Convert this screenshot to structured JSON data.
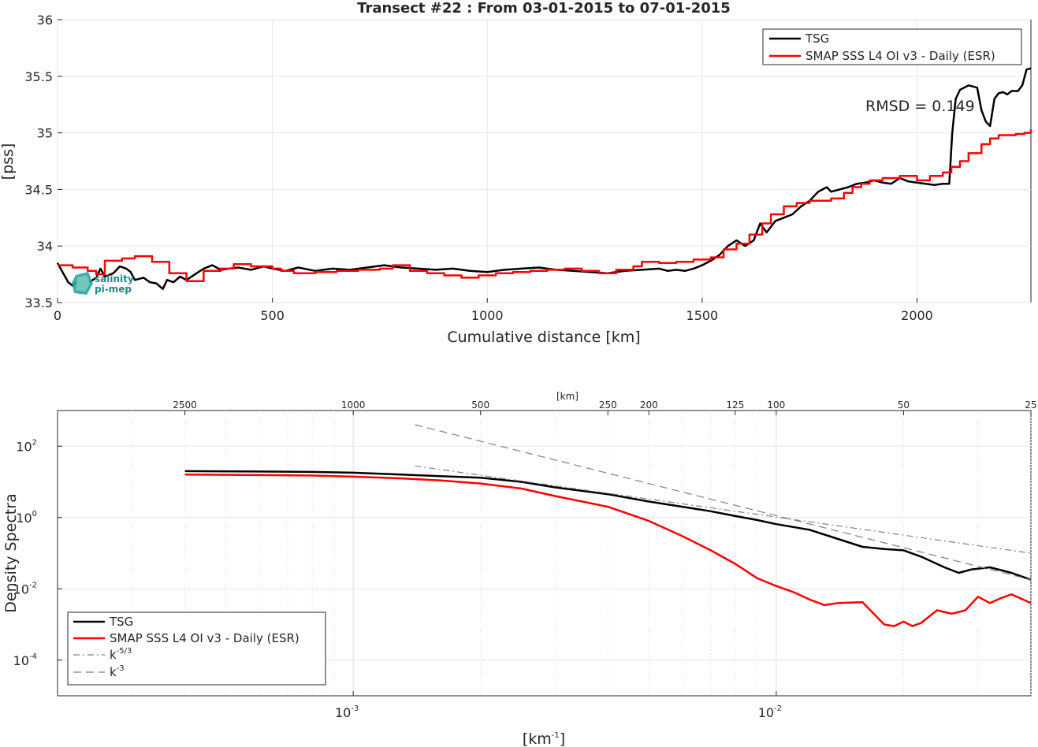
{
  "title": "Transect #22 : From 03-01-2015 to 07-01-2015",
  "logo_text": [
    "salinity",
    "pi-mep"
  ],
  "chart_data": [
    {
      "type": "line",
      "xlabel": "Cumulative distance [km]",
      "ylabel": "[pss]",
      "xlim": [
        0,
        2265
      ],
      "ylim": [
        33.5,
        36
      ],
      "xticks": [
        0,
        500,
        1000,
        1500,
        2000
      ],
      "yticks": [
        33.5,
        34,
        34.5,
        35,
        35.5,
        36
      ],
      "grid": true,
      "legend_position": "top-right",
      "annotation": "RMSD = 0.149",
      "series": [
        {
          "name": "TSG",
          "color": "#000000",
          "step": false,
          "points": [
            [
              0,
              33.85
            ],
            [
              10,
              33.78
            ],
            [
              25,
              33.68
            ],
            [
              35,
              33.65
            ],
            [
              50,
              33.7
            ],
            [
              70,
              33.67
            ],
            [
              90,
              33.72
            ],
            [
              100,
              33.8
            ],
            [
              110,
              33.73
            ],
            [
              130,
              33.76
            ],
            [
              145,
              33.82
            ],
            [
              160,
              33.8
            ],
            [
              170,
              33.77
            ],
            [
              180,
              33.7
            ],
            [
              200,
              33.72
            ],
            [
              215,
              33.68
            ],
            [
              230,
              33.67
            ],
            [
              245,
              33.62
            ],
            [
              255,
              33.7
            ],
            [
              270,
              33.68
            ],
            [
              285,
              33.73
            ],
            [
              300,
              33.7
            ],
            [
              320,
              33.75
            ],
            [
              340,
              33.8
            ],
            [
              360,
              33.83
            ],
            [
              380,
              33.79
            ],
            [
              400,
              33.8
            ],
            [
              420,
              33.81
            ],
            [
              450,
              33.79
            ],
            [
              480,
              33.82
            ],
            [
              500,
              33.8
            ],
            [
              530,
              33.78
            ],
            [
              560,
              33.81
            ],
            [
              600,
              33.78
            ],
            [
              640,
              33.8
            ],
            [
              680,
              33.79
            ],
            [
              720,
              33.81
            ],
            [
              760,
              33.83
            ],
            [
              800,
              33.81
            ],
            [
              840,
              33.8
            ],
            [
              880,
              33.79
            ],
            [
              920,
              33.8
            ],
            [
              960,
              33.78
            ],
            [
              1000,
              33.77
            ],
            [
              1040,
              33.79
            ],
            [
              1080,
              33.8
            ],
            [
              1120,
              33.81
            ],
            [
              1160,
              33.79
            ],
            [
              1200,
              33.78
            ],
            [
              1240,
              33.77
            ],
            [
              1280,
              33.76
            ],
            [
              1320,
              33.78
            ],
            [
              1360,
              33.79
            ],
            [
              1400,
              33.8
            ],
            [
              1420,
              33.78
            ],
            [
              1440,
              33.79
            ],
            [
              1460,
              33.78
            ],
            [
              1480,
              33.8
            ],
            [
              1500,
              33.83
            ],
            [
              1520,
              33.87
            ],
            [
              1540,
              33.92
            ],
            [
              1560,
              34.0
            ],
            [
              1580,
              34.05
            ],
            [
              1600,
              34.0
            ],
            [
              1620,
              34.05
            ],
            [
              1635,
              34.2
            ],
            [
              1650,
              34.12
            ],
            [
              1670,
              34.22
            ],
            [
              1690,
              34.25
            ],
            [
              1710,
              34.28
            ],
            [
              1730,
              34.35
            ],
            [
              1750,
              34.4
            ],
            [
              1770,
              34.48
            ],
            [
              1790,
              34.52
            ],
            [
              1800,
              34.48
            ],
            [
              1820,
              34.5
            ],
            [
              1840,
              34.52
            ],
            [
              1860,
              34.55
            ],
            [
              1880,
              34.56
            ],
            [
              1900,
              34.58
            ],
            [
              1920,
              34.56
            ],
            [
              1940,
              34.55
            ],
            [
              1960,
              34.6
            ],
            [
              1980,
              34.57
            ],
            [
              2000,
              34.56
            ],
            [
              2020,
              34.55
            ],
            [
              2040,
              34.54
            ],
            [
              2060,
              34.55
            ],
            [
              2075,
              34.55
            ],
            [
              2082,
              35.0
            ],
            [
              2090,
              35.3
            ],
            [
              2100,
              35.38
            ],
            [
              2120,
              35.42
            ],
            [
              2140,
              35.4
            ],
            [
              2150,
              35.2
            ],
            [
              2160,
              35.1
            ],
            [
              2170,
              35.06
            ],
            [
              2180,
              35.3
            ],
            [
              2190,
              35.35
            ],
            [
              2200,
              35.36
            ],
            [
              2210,
              35.34
            ],
            [
              2220,
              35.37
            ],
            [
              2235,
              35.37
            ],
            [
              2245,
              35.42
            ],
            [
              2255,
              35.56
            ],
            [
              2265,
              35.57
            ]
          ]
        },
        {
          "name": "SMAP SSS L4 OI v3 - Daily (ESR)",
          "color": "#ff0000",
          "step": true,
          "points": [
            [
              0,
              33.83
            ],
            [
              35,
              33.81
            ],
            [
              70,
              33.78
            ],
            [
              90,
              33.75
            ],
            [
              110,
              33.87
            ],
            [
              150,
              33.89
            ],
            [
              180,
              33.91
            ],
            [
              220,
              33.86
            ],
            [
              260,
              33.76
            ],
            [
              300,
              33.69
            ],
            [
              340,
              33.78
            ],
            [
              380,
              33.8
            ],
            [
              410,
              33.84
            ],
            [
              450,
              33.82
            ],
            [
              500,
              33.8
            ],
            [
              520,
              33.78
            ],
            [
              550,
              33.76
            ],
            [
              600,
              33.77
            ],
            [
              650,
              33.78
            ],
            [
              700,
              33.79
            ],
            [
              750,
              33.8
            ],
            [
              780,
              33.83
            ],
            [
              820,
              33.78
            ],
            [
              860,
              33.76
            ],
            [
              900,
              33.74
            ],
            [
              940,
              33.72
            ],
            [
              980,
              33.74
            ],
            [
              1020,
              33.76
            ],
            [
              1060,
              33.77
            ],
            [
              1100,
              33.78
            ],
            [
              1140,
              33.79
            ],
            [
              1180,
              33.8
            ],
            [
              1220,
              33.78
            ],
            [
              1260,
              33.76
            ],
            [
              1300,
              33.79
            ],
            [
              1340,
              33.82
            ],
            [
              1360,
              33.86
            ],
            [
              1400,
              33.85
            ],
            [
              1440,
              33.86
            ],
            [
              1480,
              33.88
            ],
            [
              1520,
              33.9
            ],
            [
              1550,
              33.97
            ],
            [
              1580,
              34.02
            ],
            [
              1610,
              34.1
            ],
            [
              1640,
              34.2
            ],
            [
              1660,
              34.28
            ],
            [
              1690,
              34.35
            ],
            [
              1720,
              34.38
            ],
            [
              1750,
              34.4
            ],
            [
              1780,
              34.4
            ],
            [
              1800,
              34.42
            ],
            [
              1830,
              34.47
            ],
            [
              1850,
              34.52
            ],
            [
              1870,
              34.55
            ],
            [
              1890,
              34.58
            ],
            [
              1920,
              34.6
            ],
            [
              1960,
              34.62
            ],
            [
              2000,
              34.58
            ],
            [
              2030,
              34.62
            ],
            [
              2060,
              34.65
            ],
            [
              2080,
              34.7
            ],
            [
              2100,
              34.75
            ],
            [
              2120,
              34.82
            ],
            [
              2150,
              34.9
            ],
            [
              2170,
              34.95
            ],
            [
              2190,
              34.98
            ],
            [
              2210,
              34.98
            ],
            [
              2230,
              34.99
            ],
            [
              2250,
              35.0
            ],
            [
              2265,
              35.03
            ]
          ]
        }
      ]
    },
    {
      "type": "line",
      "xscale": "log",
      "yscale": "log",
      "xlabel": "[km-1]",
      "ylabel": "Density Spectra",
      "top_xlabel": "[km]",
      "xlim": [
        0.0002,
        0.04
      ],
      "ylim": [
        1e-05,
        1000
      ],
      "xticks": [
        "10-3",
        "10-2"
      ],
      "yticks": [
        "10-4",
        "10-2",
        "100",
        "102"
      ],
      "top_xticks": [
        2500,
        1000,
        500,
        250,
        200,
        125,
        100,
        50,
        25
      ],
      "grid": true,
      "legend_position": "bottom-left",
      "series": [
        {
          "name": "TSG",
          "color": "#000000",
          "dash": "",
          "points": [
            [
              0.0004,
              20
            ],
            [
              0.0006,
              19.5
            ],
            [
              0.0008,
              19
            ],
            [
              0.001,
              18
            ],
            [
              0.0013,
              16
            ],
            [
              0.0016,
              14.5
            ],
            [
              0.002,
              13
            ],
            [
              0.0025,
              10
            ],
            [
              0.003,
              7
            ],
            [
              0.004,
              4.5
            ],
            [
              0.005,
              2.8
            ],
            [
              0.006,
              2
            ],
            [
              0.007,
              1.5
            ],
            [
              0.008,
              1.1
            ],
            [
              0.009,
              0.85
            ],
            [
              0.01,
              0.65
            ],
            [
              0.012,
              0.45
            ],
            [
              0.014,
              0.25
            ],
            [
              0.016,
              0.15
            ],
            [
              0.018,
              0.13
            ],
            [
              0.02,
              0.12
            ],
            [
              0.022,
              0.08
            ],
            [
              0.025,
              0.04
            ],
            [
              0.027,
              0.028
            ],
            [
              0.029,
              0.035
            ],
            [
              0.032,
              0.04
            ],
            [
              0.036,
              0.028
            ],
            [
              0.04,
              0.018
            ]
          ]
        },
        {
          "name": "SMAP SSS L4 OI v3 - Daily (ESR)",
          "color": "#ff0000",
          "dash": "",
          "points": [
            [
              0.0004,
              16
            ],
            [
              0.0006,
              15.5
            ],
            [
              0.0008,
              15
            ],
            [
              0.001,
              14
            ],
            [
              0.0013,
              12.5
            ],
            [
              0.0016,
              11
            ],
            [
              0.002,
              9
            ],
            [
              0.0025,
              6.5
            ],
            [
              0.003,
              4
            ],
            [
              0.004,
              2
            ],
            [
              0.005,
              0.8
            ],
            [
              0.006,
              0.3
            ],
            [
              0.007,
              0.12
            ],
            [
              0.008,
              0.05
            ],
            [
              0.009,
              0.02
            ],
            [
              0.01,
              0.012
            ],
            [
              0.011,
              0.008
            ],
            [
              0.012,
              0.005
            ],
            [
              0.013,
              0.0035
            ],
            [
              0.014,
              0.004
            ],
            [
              0.016,
              0.0042
            ],
            [
              0.017,
              0.002
            ],
            [
              0.018,
              0.001
            ],
            [
              0.019,
              0.0009
            ],
            [
              0.02,
              0.0012
            ],
            [
              0.021,
              0.0009
            ],
            [
              0.022,
              0.0011
            ],
            [
              0.024,
              0.0025
            ],
            [
              0.026,
              0.002
            ],
            [
              0.028,
              0.0025
            ],
            [
              0.03,
              0.006
            ],
            [
              0.032,
              0.004
            ],
            [
              0.034,
              0.0055
            ],
            [
              0.036,
              0.007
            ],
            [
              0.04,
              0.004
            ]
          ]
        },
        {
          "name": "k-5/3",
          "color": "#808080",
          "dash": "8,4,2,4",
          "points": [
            [
              0.0014,
              28
            ],
            [
              0.04,
              0.1
            ]
          ]
        },
        {
          "name": "k-3",
          "color": "#808080",
          "dash": "10,6",
          "points": [
            [
              0.0014,
              400
            ],
            [
              0.04,
              0.018
            ]
          ]
        }
      ]
    }
  ]
}
